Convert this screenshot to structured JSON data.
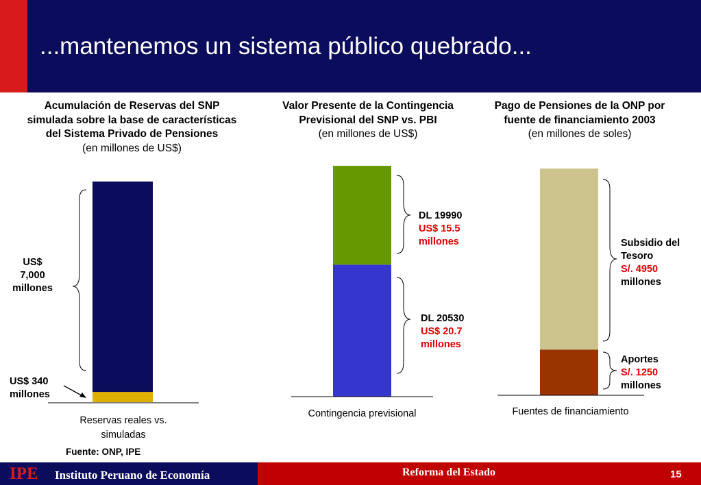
{
  "slide": {
    "title": "...mantenemos un sistema público quebrado...",
    "source": "Fuente: ONP, IPE",
    "footer": {
      "logo": "IPE",
      "institution": "Instituto Peruano de Economía",
      "section": "Reforma del Estado",
      "page_number": "15"
    }
  },
  "chart_data": [
    {
      "type": "bar",
      "stacked": true,
      "title": "Acumulación de Reservas del SNP simulada sobre la base de características del Sistema Privado de Pensiones",
      "subtitle": "(en millones de US$)",
      "xlabel": "Reservas reales vs. simuladas",
      "categories": [
        ""
      ],
      "series": [
        {
          "values": [
            340
          ],
          "color": "#e0b000"
        },
        {
          "values": [
            7000
          ],
          "color": "#0b0d5c"
        }
      ],
      "annotations": [
        {
          "text": [
            "US$",
            "7,000",
            "millones"
          ]
        },
        {
          "text": [
            "US$ 340",
            "millones"
          ]
        }
      ]
    },
    {
      "type": "bar",
      "stacked": true,
      "title": "Valor Presente de la Contingencia Previsional del SNP vs. PBI",
      "subtitle": "(en millones de US$)",
      "xlabel": "Contingencia previsional",
      "categories": [
        ""
      ],
      "series": [
        {
          "values": [
            20.7
          ],
          "color": "#3535cf"
        },
        {
          "values": [
            15.5
          ],
          "color": "#669900"
        }
      ],
      "annotations": [
        {
          "name": "DL 20530",
          "value": "US$ 20.7",
          "unit": "millones"
        },
        {
          "name": "DL 19990",
          "value": "US$ 15.5",
          "unit": "millones"
        }
      ]
    },
    {
      "type": "bar",
      "stacked": true,
      "title": "Pago de Pensiones de la ONP por fuente de financiamiento 2003",
      "subtitle": "(en millones de soles)",
      "xlabel": "Fuentes de financiamiento",
      "categories": [
        ""
      ],
      "series": [
        {
          "values": [
            1250
          ],
          "color": "#993300"
        },
        {
          "values": [
            4950
          ],
          "color": "#cdc38c"
        }
      ],
      "annotations": [
        {
          "name": "Aportes",
          "value": "S/. 1250",
          "unit": "millones"
        },
        {
          "name": "Subsidio del Tesoro",
          "value": "S/. 4950",
          "unit": "millones"
        }
      ]
    }
  ]
}
